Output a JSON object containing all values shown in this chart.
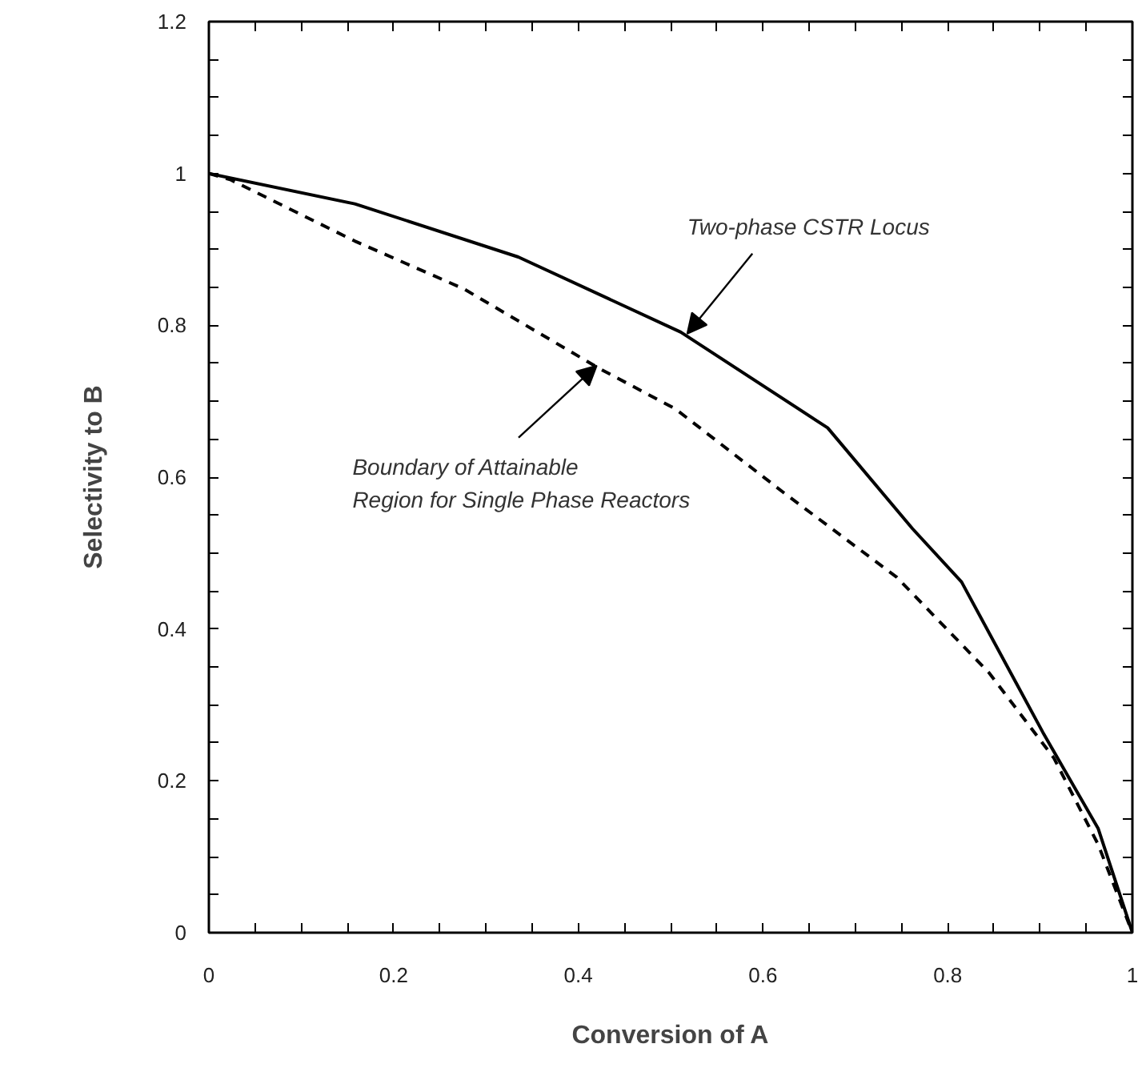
{
  "chart_data": {
    "type": "line",
    "xlabel": "Conversion of A",
    "ylabel": "Selectivity to B",
    "xlim": [
      0,
      1
    ],
    "ylim": [
      0,
      1.2
    ],
    "xticks": [
      0,
      {
        "value": 0.05,
        "label": null
      },
      {
        "value": 0.1,
        "label": null
      },
      {
        "value": 0.15,
        "label": null
      },
      0.2,
      {
        "value": 0.25,
        "label": null
      },
      {
        "value": 0.3,
        "label": null
      },
      {
        "value": 0.35,
        "label": null
      },
      0.4,
      {
        "value": 0.45,
        "label": null
      },
      {
        "value": 0.5,
        "label": null
      },
      {
        "value": 0.55,
        "label": null
      },
      0.6,
      {
        "value": 0.65,
        "label": null
      },
      {
        "value": 0.7,
        "label": null
      },
      {
        "value": 0.75,
        "label": null
      },
      0.8,
      {
        "value": 0.85,
        "label": null
      },
      {
        "value": 0.9,
        "label": null
      },
      {
        "value": 0.95,
        "label": null
      },
      1
    ],
    "yticks": [
      0,
      {
        "value": 0.05,
        "label": null
      },
      {
        "value": 0.1,
        "label": null
      },
      {
        "value": 0.15,
        "label": null
      },
      0.2,
      {
        "value": 0.25,
        "label": null
      },
      {
        "value": 0.3,
        "label": null
      },
      {
        "value": 0.35,
        "label": null
      },
      0.4,
      {
        "value": 0.45,
        "label": null
      },
      {
        "value": 0.5,
        "label": null
      },
      {
        "value": 0.55,
        "label": null
      },
      0.6,
      {
        "value": 0.65,
        "label": null
      },
      {
        "value": 0.7,
        "label": null
      },
      {
        "value": 0.75,
        "label": null
      },
      0.8,
      {
        "value": 0.85,
        "label": null
      },
      {
        "value": 0.9,
        "label": null
      },
      {
        "value": 0.95,
        "label": null
      },
      1,
      {
        "value": 1.05,
        "label": null
      },
      {
        "value": 1.1,
        "label": null
      },
      {
        "value": 1.15,
        "label": null
      },
      1.2
    ],
    "grid": false,
    "marker": "none",
    "series": [
      {
        "color": "#000000",
        "line_style": "solid",
        "x": [
          0,
          0.158,
          0.335,
          0.511,
          0.67,
          0.762,
          0.815,
          0.903,
          0.963,
          1
        ],
        "values": [
          1,
          0.96,
          0.89,
          0.791,
          0.665,
          0.532,
          0.462,
          0.264,
          0.137,
          0
        ]
      },
      {
        "color": "#000000",
        "line_style": "dashed",
        "x": [
          0,
          0.023,
          0.158,
          0.276,
          0.423,
          0.505,
          0.622,
          0.745,
          0.845,
          0.915,
          0.963,
          1
        ],
        "values": [
          1,
          0.992,
          0.911,
          0.848,
          0.743,
          0.69,
          0.58,
          0.468,
          0.342,
          0.23,
          0.116,
          0
        ]
      }
    ],
    "annotations": [
      {
        "text": "Two-phase CSTR Locus",
        "x": 0.518,
        "y": 0.789
      },
      {
        "text": "Boundary of Attainable\nRegion for Single Phase Reactors",
        "x": 0.42,
        "y": 0.747
      }
    ]
  }
}
